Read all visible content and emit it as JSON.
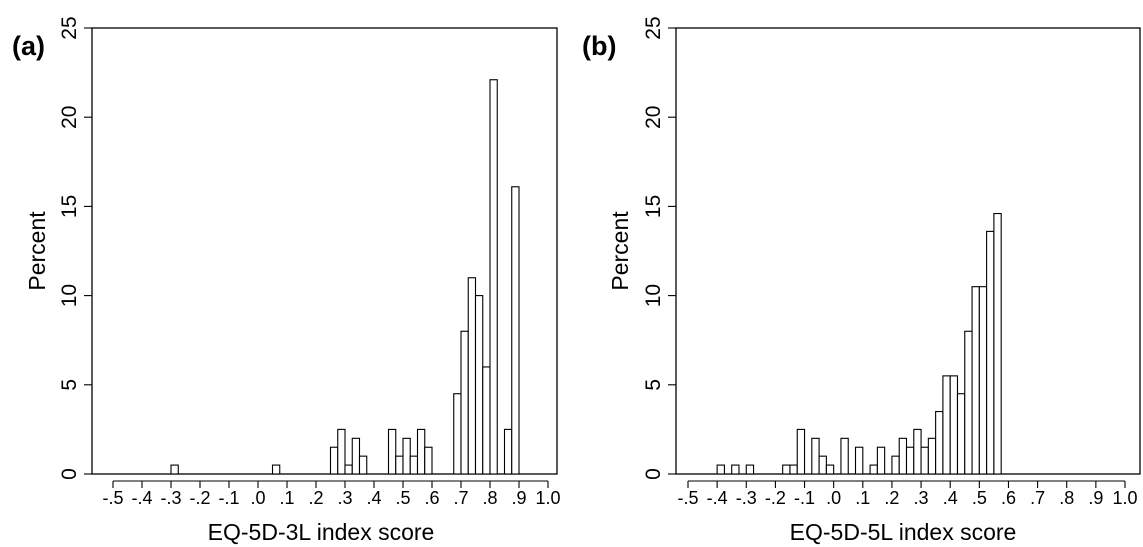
{
  "chart_data": [
    {
      "type": "bar",
      "panel_label": "(a)",
      "xlabel": "EQ-5D-3L index score",
      "ylabel": "Percent",
      "xlim": [
        -0.5,
        1.0
      ],
      "ylim": [
        0,
        25
      ],
      "bin_width": 0.025,
      "x_tick_values": [
        -0.5,
        -0.4,
        -0.3,
        -0.2,
        -0.1,
        0.0,
        0.1,
        0.2,
        0.3,
        0.4,
        0.5,
        0.6,
        0.7,
        0.8,
        0.9,
        1.0
      ],
      "x_tick_labels": [
        "-.5",
        "-.4",
        "-.3",
        "-.2",
        "-.1",
        ".0",
        ".1",
        ".2",
        ".3",
        ".4",
        ".5",
        ".6",
        ".7",
        ".8",
        ".9",
        "1.0"
      ],
      "y_ticks": [
        "0",
        "5",
        "10",
        "15",
        "20",
        "25"
      ],
      "grid": false,
      "bins": [
        {
          "x": -0.3,
          "value": 0.5
        },
        {
          "x": 0.05,
          "value": 0.5
        },
        {
          "x": 0.25,
          "value": 1.5
        },
        {
          "x": 0.275,
          "value": 2.5
        },
        {
          "x": 0.3,
          "value": 0.5
        },
        {
          "x": 0.325,
          "value": 2.0
        },
        {
          "x": 0.35,
          "value": 1.0
        },
        {
          "x": 0.45,
          "value": 2.5
        },
        {
          "x": 0.475,
          "value": 1.0
        },
        {
          "x": 0.5,
          "value": 2.0
        },
        {
          "x": 0.525,
          "value": 1.0
        },
        {
          "x": 0.55,
          "value": 2.5
        },
        {
          "x": 0.575,
          "value": 1.5
        },
        {
          "x": 0.675,
          "value": 4.5
        },
        {
          "x": 0.7,
          "value": 8.0
        },
        {
          "x": 0.725,
          "value": 11.0
        },
        {
          "x": 0.75,
          "value": 10.0
        },
        {
          "x": 0.775,
          "value": 6.0
        },
        {
          "x": 0.8,
          "value": 22.1
        },
        {
          "x": 0.85,
          "value": 2.5
        },
        {
          "x": 0.875,
          "value": 16.1
        }
      ]
    },
    {
      "type": "bar",
      "panel_label": "(b)",
      "xlabel": "EQ-5D-5L index score",
      "ylabel": "Percent",
      "xlim": [
        -0.5,
        1.0
      ],
      "ylim": [
        0,
        25
      ],
      "bin_width": 0.025,
      "x_tick_values": [
        -0.5,
        -0.4,
        -0.3,
        -0.2,
        -0.1,
        0.0,
        0.1,
        0.2,
        0.3,
        0.4,
        0.5,
        0.6,
        0.7,
        0.8,
        0.9,
        1.0
      ],
      "x_tick_labels": [
        "-.5",
        "-.4",
        "-.3",
        "-.2",
        "-.1",
        ".0",
        ".1",
        ".2",
        ".3",
        ".4",
        ".5",
        ".6",
        ".7",
        ".8",
        ".9",
        "1.0"
      ],
      "y_ticks": [
        "0",
        "5",
        "10",
        "15",
        "20",
        "25"
      ],
      "grid": false,
      "bins": [
        {
          "x": -0.4,
          "value": 0.5
        },
        {
          "x": -0.35,
          "value": 0.5
        },
        {
          "x": -0.3,
          "value": 0.5
        },
        {
          "x": -0.175,
          "value": 0.5
        },
        {
          "x": -0.15,
          "value": 0.5
        },
        {
          "x": -0.125,
          "value": 2.5
        },
        {
          "x": -0.075,
          "value": 2.0
        },
        {
          "x": -0.05,
          "value": 1.0
        },
        {
          "x": -0.025,
          "value": 0.5
        },
        {
          "x": 0.025,
          "value": 2.0
        },
        {
          "x": 0.075,
          "value": 1.5
        },
        {
          "x": 0.125,
          "value": 0.5
        },
        {
          "x": 0.15,
          "value": 1.5
        },
        {
          "x": 0.2,
          "value": 1.0
        },
        {
          "x": 0.225,
          "value": 2.0
        },
        {
          "x": 0.25,
          "value": 1.5
        },
        {
          "x": 0.275,
          "value": 2.5
        },
        {
          "x": 0.3,
          "value": 1.5
        },
        {
          "x": 0.325,
          "value": 2.0
        },
        {
          "x": 0.35,
          "value": 3.5
        },
        {
          "x": 0.375,
          "value": 5.5
        },
        {
          "x": 0.4,
          "value": 5.5
        },
        {
          "x": 0.425,
          "value": 4.5
        },
        {
          "x": 0.45,
          "value": 8.0
        },
        {
          "x": 0.475,
          "value": 10.5
        },
        {
          "x": 0.5,
          "value": 10.5
        },
        {
          "x": 0.525,
          "value": 13.6
        },
        {
          "x": 0.55,
          "value": 14.6
        }
      ]
    }
  ]
}
